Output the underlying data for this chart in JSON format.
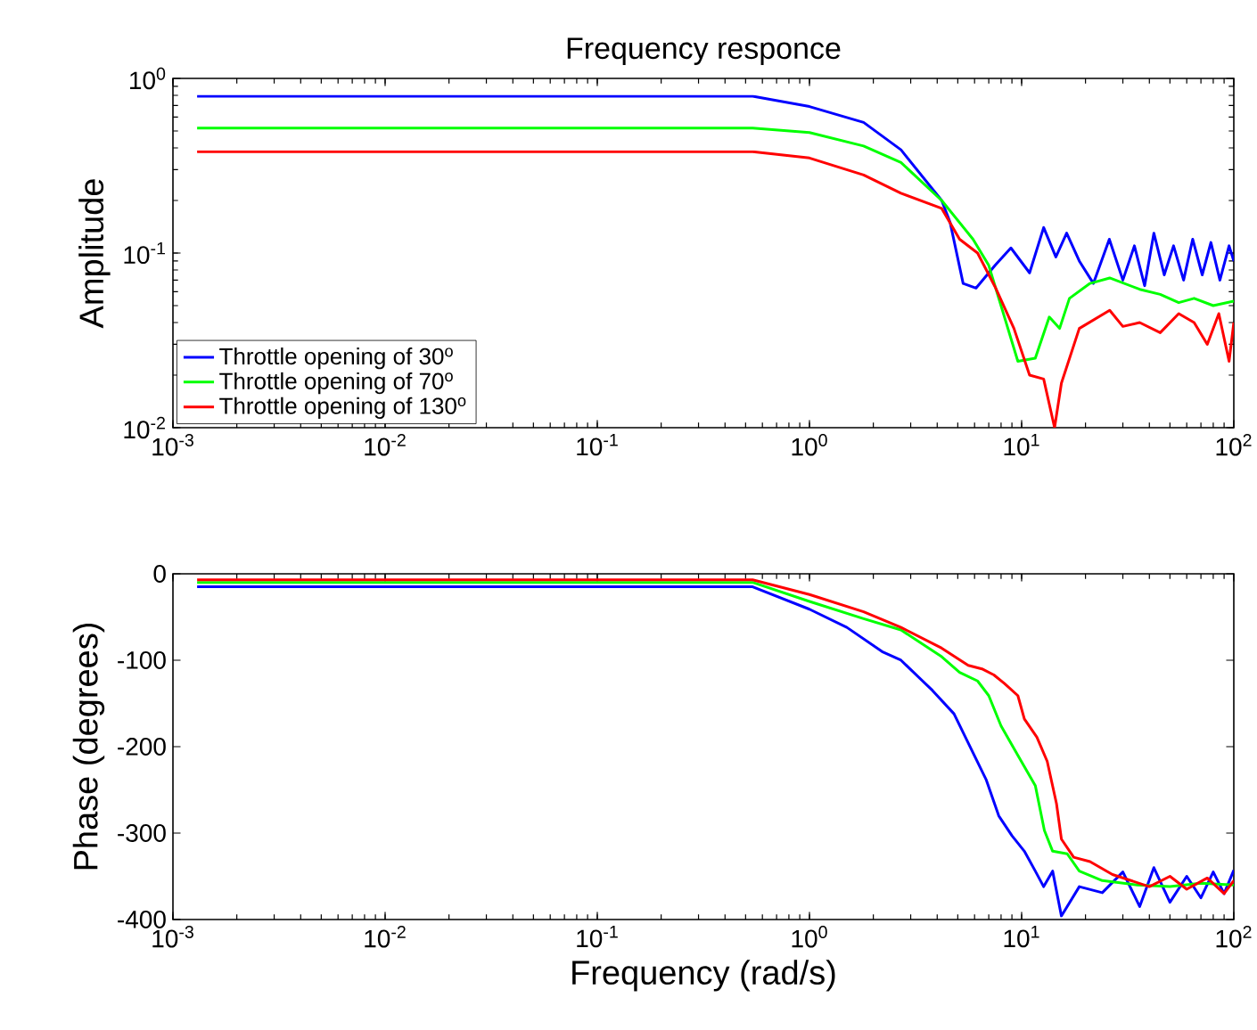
{
  "chart_data": [
    {
      "type": "line",
      "title": "Frequency responce",
      "ylabel": "Amplitude",
      "log": "xy",
      "legend": "bottom left",
      "xlim": [
        0.001,
        100
      ],
      "xticks": [
        {
          "value": 0.001,
          "label": "10$^{-3}$"
        },
        {
          "value": 0.01,
          "label": "10$^{-2}$"
        },
        {
          "value": 0.1,
          "label": "10$^{-1}$"
        },
        {
          "value": 1,
          "label": "10$^{0}$"
        },
        {
          "value": 10,
          "label": "10$^{1}$"
        },
        {
          "value": 100,
          "label": "10$^{2}$"
        }
      ],
      "ylim": [
        0.01,
        1
      ],
      "yticks": [
        {
          "value": 0.01,
          "label": "10$^{-2}$"
        },
        {
          "value": 0.1,
          "label": "10$^{-1}$"
        },
        {
          "value": 1,
          "label": "10$^{0}$"
        }
      ],
      "series": [
        {
          "name": "Throttle opening of 30$^{o}$",
          "color": "#0000ff",
          "x": [
            0.0013,
            0.54,
            1,
            1.8,
            2.7,
            4.2,
            4.6,
            5.3,
            6.1,
            7.5,
            8.9,
            10.9,
            12.7,
            14.5,
            16.3,
            18.7,
            21.8,
            25.9,
            30,
            34,
            38,
            42,
            47,
            52,
            58,
            64,
            71,
            78,
            86,
            95,
            100
          ],
          "values": [
            0.79,
            0.79,
            0.69,
            0.56,
            0.39,
            0.2,
            0.15,
            0.067,
            0.063,
            0.085,
            0.107,
            0.077,
            0.14,
            0.095,
            0.13,
            0.09,
            0.067,
            0.12,
            0.07,
            0.11,
            0.065,
            0.13,
            0.075,
            0.11,
            0.07,
            0.12,
            0.075,
            0.115,
            0.07,
            0.11,
            0.09
          ]
        },
        {
          "name": "Throttle opening of 70$^{o}$",
          "color": "#00ff00",
          "x": [
            0.0013,
            0.54,
            1,
            1.8,
            2.7,
            4.2,
            5.9,
            7.0,
            8.3,
            9.6,
            11.6,
            13.5,
            15.1,
            16.8,
            21,
            26,
            36,
            45,
            55,
            65,
            80,
            100
          ],
          "values": [
            0.52,
            0.52,
            0.49,
            0.41,
            0.33,
            0.2,
            0.12,
            0.085,
            0.043,
            0.024,
            0.025,
            0.043,
            0.037,
            0.055,
            0.067,
            0.072,
            0.062,
            0.058,
            0.052,
            0.055,
            0.05,
            0.053
          ]
        },
        {
          "name": "Throttle opening of 130$^{o}$",
          "color": "#ff0000",
          "x": [
            0.0013,
            0.54,
            1,
            1.8,
            2.7,
            4.2,
            5.1,
            6.2,
            7.5,
            9.2,
            10.9,
            12.7,
            14.3,
            15.4,
            18.7,
            26,
            30,
            36,
            45,
            55,
            65,
            75,
            85,
            95,
            100
          ],
          "values": [
            0.38,
            0.38,
            0.35,
            0.28,
            0.22,
            0.18,
            0.12,
            0.1,
            0.064,
            0.037,
            0.02,
            0.019,
            0.01,
            0.018,
            0.037,
            0.047,
            0.038,
            0.04,
            0.035,
            0.045,
            0.04,
            0.03,
            0.045,
            0.024,
            0.04
          ]
        }
      ]
    },
    {
      "type": "line",
      "xlabel": "Frequency (rad/s)",
      "ylabel": "Phase (degrees)",
      "log": "x",
      "xlim": [
        0.001,
        100
      ],
      "xticks": [
        {
          "value": 0.001,
          "label": "10$^{-3}$"
        },
        {
          "value": 0.01,
          "label": "10$^{-2}$"
        },
        {
          "value": 0.1,
          "label": "10$^{-1}$"
        },
        {
          "value": 1,
          "label": "10$^{0}$"
        },
        {
          "value": 10,
          "label": "10$^{1}$"
        },
        {
          "value": 100,
          "label": "10$^{2}$"
        }
      ],
      "ylim": [
        -400,
        0
      ],
      "yticks": [
        -400,
        -300,
        -200,
        -100,
        0
      ],
      "series": [
        {
          "color": "#0000ff",
          "x": [
            0.0013,
            0.54,
            1,
            1.5,
            2.2,
            2.7,
            3.8,
            4.8,
            6.8,
            7.8,
            9.0,
            10.3,
            11.6,
            12.7,
            14,
            15.4,
            18.7,
            24,
            30,
            36,
            42,
            50,
            60,
            70,
            80,
            90,
            100
          ],
          "values": [
            -15,
            -15,
            -41,
            -62,
            -90,
            -100,
            -135,
            -162,
            -238,
            -280,
            -303,
            -321,
            -344,
            -362,
            -344,
            -396,
            -362,
            -369,
            -345,
            -385,
            -340,
            -380,
            -350,
            -375,
            -345,
            -370,
            -343
          ]
        },
        {
          "color": "#00ff00",
          "x": [
            0.0013,
            0.54,
            1,
            1.8,
            2.7,
            4.2,
            5.1,
            6.2,
            7.0,
            8.0,
            9.6,
            11.6,
            12.8,
            14,
            16.4,
            18.7,
            24,
            35,
            50,
            70,
            100
          ],
          "values": [
            -10,
            -10,
            -32,
            -52,
            -65,
            -96,
            -114,
            -124,
            -141,
            -176,
            -210,
            -245,
            -297,
            -321,
            -324,
            -344,
            -355,
            -360,
            -362,
            -358,
            -360
          ]
        },
        {
          "color": "#ff0000",
          "x": [
            0.0013,
            0.54,
            1,
            1.8,
            2.7,
            4.2,
            5.6,
            6.5,
            7.4,
            8.3,
            9.6,
            10.3,
            11.8,
            13.2,
            14.6,
            15.4,
            17.6,
            21,
            26.8,
            40,
            50,
            60,
            75,
            90,
            100
          ],
          "values": [
            -7,
            -7,
            -24,
            -44,
            -62,
            -86,
            -106,
            -110,
            -117,
            -127,
            -141,
            -168,
            -189,
            -217,
            -266,
            -307,
            -328,
            -333,
            -348,
            -362,
            -350,
            -365,
            -352,
            -370,
            -355
          ]
        }
      ]
    }
  ]
}
